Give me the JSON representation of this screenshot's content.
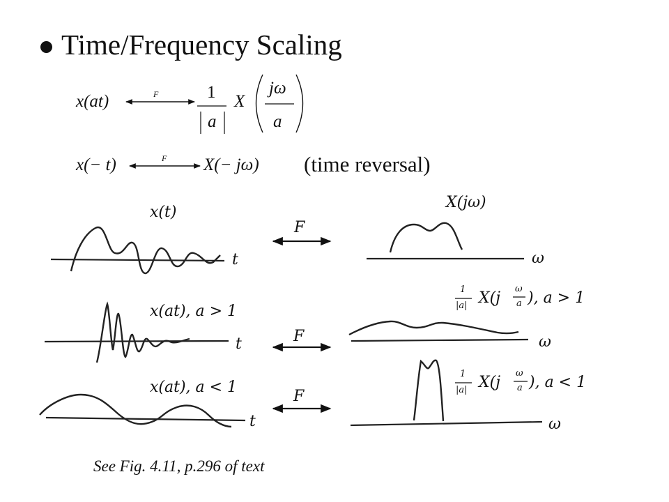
{
  "slide": {
    "title": "Time/Frequency Scaling",
    "note": "See Fig. 4.11, p.296 of text"
  },
  "equations": {
    "scaling": {
      "lhs": "x(at)",
      "arrow_label": "F",
      "coef_num": "1",
      "coef_den": "|a|",
      "X": "X",
      "arg_num": "jω",
      "arg_den": "a"
    },
    "reversal": {
      "lhs": "x(− t)",
      "arrow_label": "F",
      "rhs": "X(− jω)",
      "caption": "(time reversal)"
    }
  },
  "plots": {
    "row1": {
      "time_label": "x(t)",
      "t_axis": "t",
      "transform": "F",
      "freq_label": "X(jω)",
      "w_axis": "ω"
    },
    "row2": {
      "time_label": "x(at), a > 1",
      "t_axis": "t",
      "transform": "F",
      "freq_coef_num": "1",
      "freq_coef_den": "|a|",
      "freq_X": "X(j",
      "freq_w_num": "ω",
      "freq_w_den": "a",
      "freq_tail": "), a > 1",
      "w_axis": "ω"
    },
    "row3": {
      "time_label": "x(at), a < 1",
      "t_axis": "t",
      "transform": "F",
      "freq_coef_num": "1",
      "freq_coef_den": "|a|",
      "freq_X": "X(j",
      "freq_w_num": "ω",
      "freq_w_den": "a",
      "freq_tail": "), a < 1",
      "w_axis": "ω"
    }
  },
  "colors": {
    "ink": "#111111",
    "background": "#ffffff"
  }
}
